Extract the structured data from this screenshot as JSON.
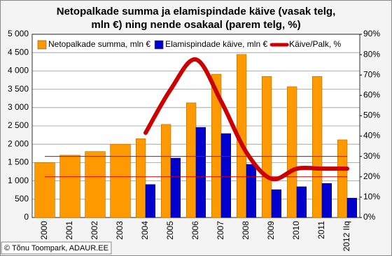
{
  "chart_data": {
    "type": "bar-line",
    "title": [
      "Netopalkade summa ja elamispindade käive (vasak telg,",
      "mln €) ning nende osakaal (parem telg, %)"
    ],
    "categories": [
      "2000",
      "2001",
      "2002",
      "2003",
      "2004",
      "2005",
      "2006",
      "2007",
      "2008",
      "2009",
      "2010",
      "2011",
      "2012 IIq"
    ],
    "series": [
      {
        "name": "Netopalkade summa, mln €",
        "color": "#ff9900",
        "values": [
          1500,
          1700,
          1800,
          2000,
          2150,
          2540,
          3130,
          3910,
          4450,
          3850,
          3570,
          3850,
          2120
        ]
      },
      {
        "name": "Elamispindade käive, mln €",
        "color": "#0000cc",
        "values": [
          null,
          null,
          null,
          null,
          900,
          1620,
          2460,
          2290,
          1450,
          760,
          840,
          930,
          530
        ]
      },
      {
        "name": "Käive/Palk, %",
        "color": "#cc0000",
        "axis": "y2",
        "values": [
          null,
          null,
          null,
          null,
          41.6,
          63,
          77.6,
          57,
          32,
          19,
          24,
          24,
          24
        ]
      }
    ],
    "reference_lines": [
      30,
      20
    ],
    "ylim": [
      0,
      5000
    ],
    "yticks": [
      0,
      {
        "value": 500,
        "label": "500"
      },
      {
        "value": 1000,
        "label": "1 000"
      },
      {
        "value": 1500,
        "label": "1 500"
      },
      {
        "value": 2000,
        "label": "2 000"
      },
      {
        "value": 2500,
        "label": "2 500"
      },
      {
        "value": 3000,
        "label": "3 000"
      },
      {
        "value": 3500,
        "label": "3 500"
      },
      {
        "value": 4000,
        "label": "4 000"
      },
      {
        "value": 4500,
        "label": "4 500"
      },
      {
        "value": 5000,
        "label": "5 000"
      }
    ],
    "y2lim": [
      0,
      90
    ],
    "y2ticks": [
      {
        "value": 0,
        "label": "0%"
      },
      {
        "value": 10,
        "label": "10%"
      },
      {
        "value": 20,
        "label": "20%"
      },
      {
        "value": 30,
        "label": "30%"
      },
      {
        "value": 40,
        "label": "40%"
      },
      {
        "value": 50,
        "label": "50%"
      },
      {
        "value": 60,
        "label": "60%"
      },
      {
        "value": 70,
        "label": "70%"
      },
      {
        "value": 80,
        "label": "80%"
      },
      {
        "value": 90,
        "label": "90%"
      }
    ],
    "grid": true,
    "credit": "© Tõnu Toompark, ADAUR.EE"
  }
}
